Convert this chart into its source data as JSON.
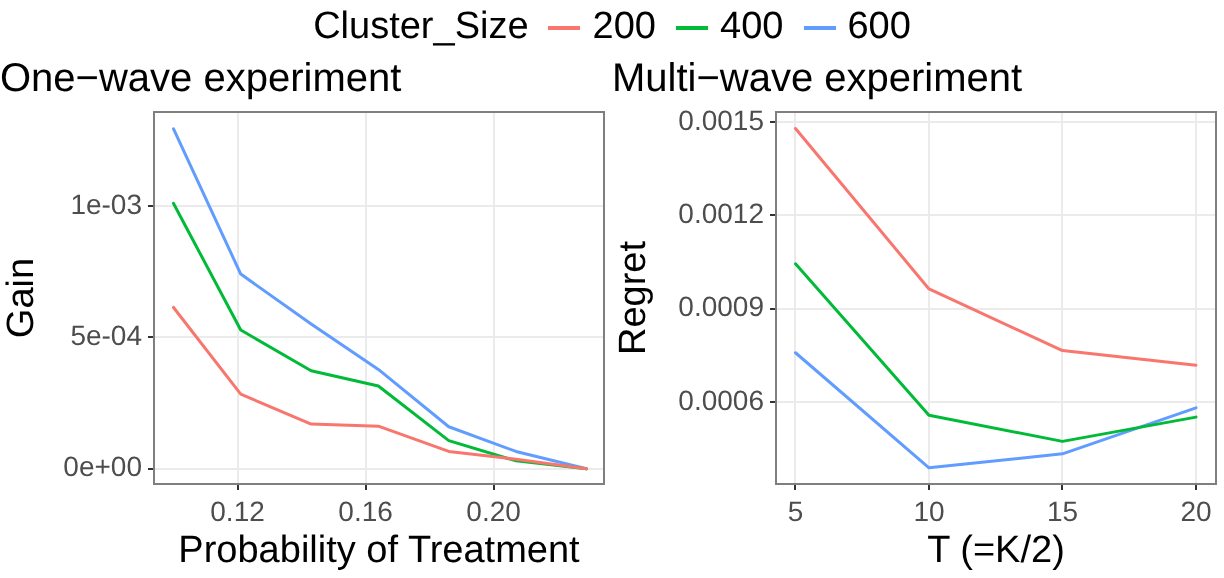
{
  "chart_data": [
    {
      "type": "line",
      "title": "One−wave experiment",
      "xlabel": "Probability of Treatment",
      "ylabel": "Gain",
      "legend_title": "Cluster_Size",
      "legend": "top",
      "grid": true,
      "marker": "none",
      "line_style": "solid",
      "x": [
        0.1,
        0.121,
        0.143,
        0.164,
        0.186,
        0.207,
        0.229
      ],
      "xlim": [
        0.0939,
        0.2345
      ],
      "xticks": [
        0.12,
        0.16,
        {
          "value": 0.2,
          "label": "0.20"
        }
      ],
      "ylim": [
        -5.8e-05,
        0.001358
      ],
      "yticks": [
        {
          "value": 0,
          "label": "0e+00"
        },
        {
          "value": 0.0005,
          "label": "5e-04"
        },
        {
          "value": 0.001,
          "label": "1e-03"
        }
      ],
      "series": [
        {
          "name": "200",
          "color": "#f8766d",
          "values": [
            0.000614,
            0.000284,
            0.00017,
            0.000162,
            6.6e-05,
            3.6e-05,
            0
          ]
        },
        {
          "name": "400",
          "color": "#00ba38",
          "values": [
            0.00101,
            0.000528,
            0.000373,
            0.000315,
            0.000107,
            3e-05,
            0
          ]
        },
        {
          "name": "600",
          "color": "#619cff",
          "values": [
            0.001294,
            0.000741,
            0.000551,
            0.000378,
            0.00016,
            6.6e-05,
            0
          ]
        }
      ]
    },
    {
      "type": "line",
      "title": "Multi−wave experiment",
      "xlabel": "T (=K/2)",
      "ylabel": "Regret",
      "grid": true,
      "marker": "none",
      "line_style": "solid",
      "x": [
        5,
        10,
        15,
        20
      ],
      "xlim": [
        4.27,
        20.75
      ],
      "xticks": [
        5,
        10,
        15,
        20
      ],
      "ylim": [
        0.000336,
        0.001532
      ],
      "yticks": [
        {
          "value": 0.0006,
          "label": "0.0006"
        },
        {
          "value": 0.0009,
          "label": "0.0009"
        },
        {
          "value": 0.0012,
          "label": "0.0012"
        },
        {
          "value": 0.0015,
          "label": "0.0015"
        }
      ],
      "series": [
        {
          "name": "200",
          "color": "#f8766d",
          "values": [
            0.001479,
            0.000963,
            0.000765,
            0.000718
          ]
        },
        {
          "name": "400",
          "color": "#00ba38",
          "values": [
            0.001044,
            0.000557,
            0.000473,
            0.000551
          ]
        },
        {
          "name": "600",
          "color": "#619cff",
          "values": [
            0.000758,
            0.000388,
            0.000433,
            0.000581
          ]
        }
      ]
    }
  ]
}
